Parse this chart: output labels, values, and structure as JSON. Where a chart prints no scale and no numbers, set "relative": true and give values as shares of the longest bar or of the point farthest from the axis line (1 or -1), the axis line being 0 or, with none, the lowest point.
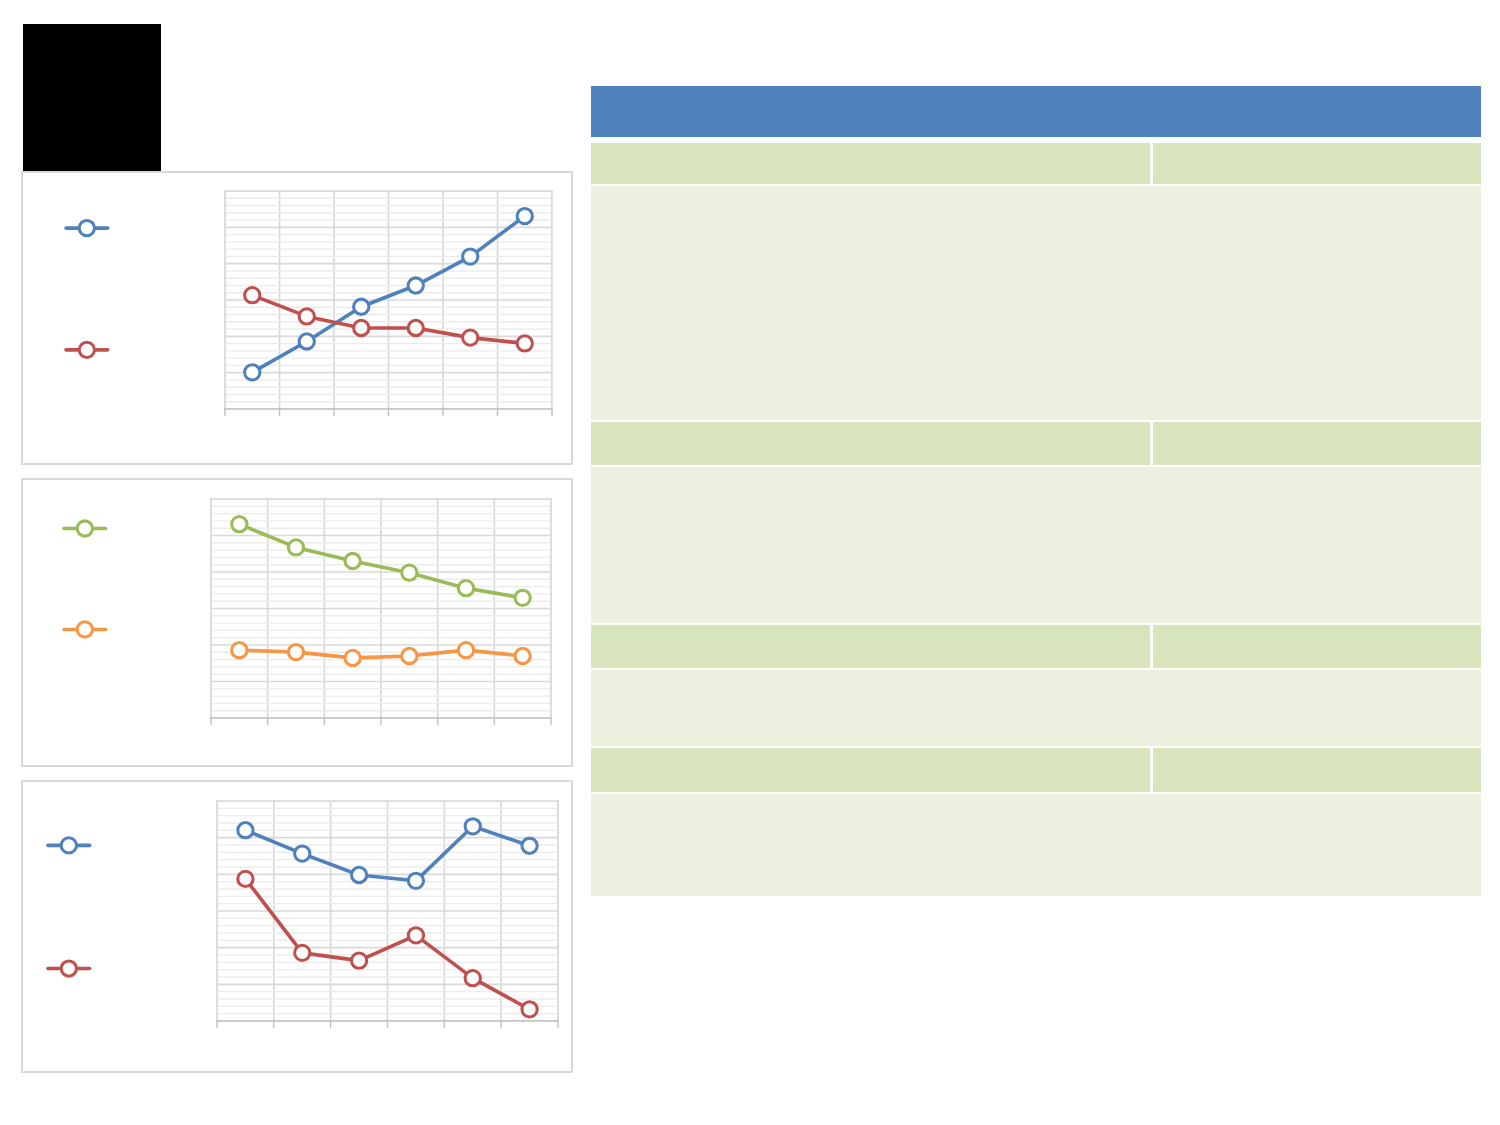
{
  "chart_data": [
    {
      "type": "line",
      "relative": true,
      "categories": [
        null,
        null,
        null,
        null,
        null,
        null
      ],
      "series": [
        {
          "color": "#4f81bd",
          "values": [
            0.19,
            0.35,
            0.53,
            0.64,
            0.79,
            1.0
          ]
        },
        {
          "color": "#c0504d",
          "values": [
            0.59,
            0.48,
            0.42,
            0.42,
            0.37,
            0.34
          ]
        }
      ],
      "marker": "circle",
      "line_style": "solid",
      "grid": true
    },
    {
      "type": "line",
      "relative": true,
      "categories": [
        null,
        null,
        null,
        null,
        null,
        null
      ],
      "series": [
        {
          "color": "#9bbb59",
          "values": [
            1.0,
            0.88,
            0.81,
            0.75,
            0.67,
            0.62
          ]
        },
        {
          "color": "#f79646",
          "values": [
            0.35,
            0.34,
            0.31,
            0.32,
            0.35,
            0.32
          ]
        }
      ],
      "marker": "circle",
      "line_style": "solid",
      "grid": true
    },
    {
      "type": "line",
      "relative": true,
      "categories": [
        null,
        null,
        null,
        null,
        null,
        null
      ],
      "series": [
        {
          "color": "#4f81bd",
          "values": [
            0.98,
            0.86,
            0.75,
            0.72,
            1.0,
            0.9
          ]
        },
        {
          "color": "#c0504d",
          "values": [
            0.73,
            0.35,
            0.31,
            0.44,
            0.22,
            0.06
          ]
        }
      ],
      "marker": "circle",
      "line_style": "solid",
      "grid": true
    }
  ]
}
